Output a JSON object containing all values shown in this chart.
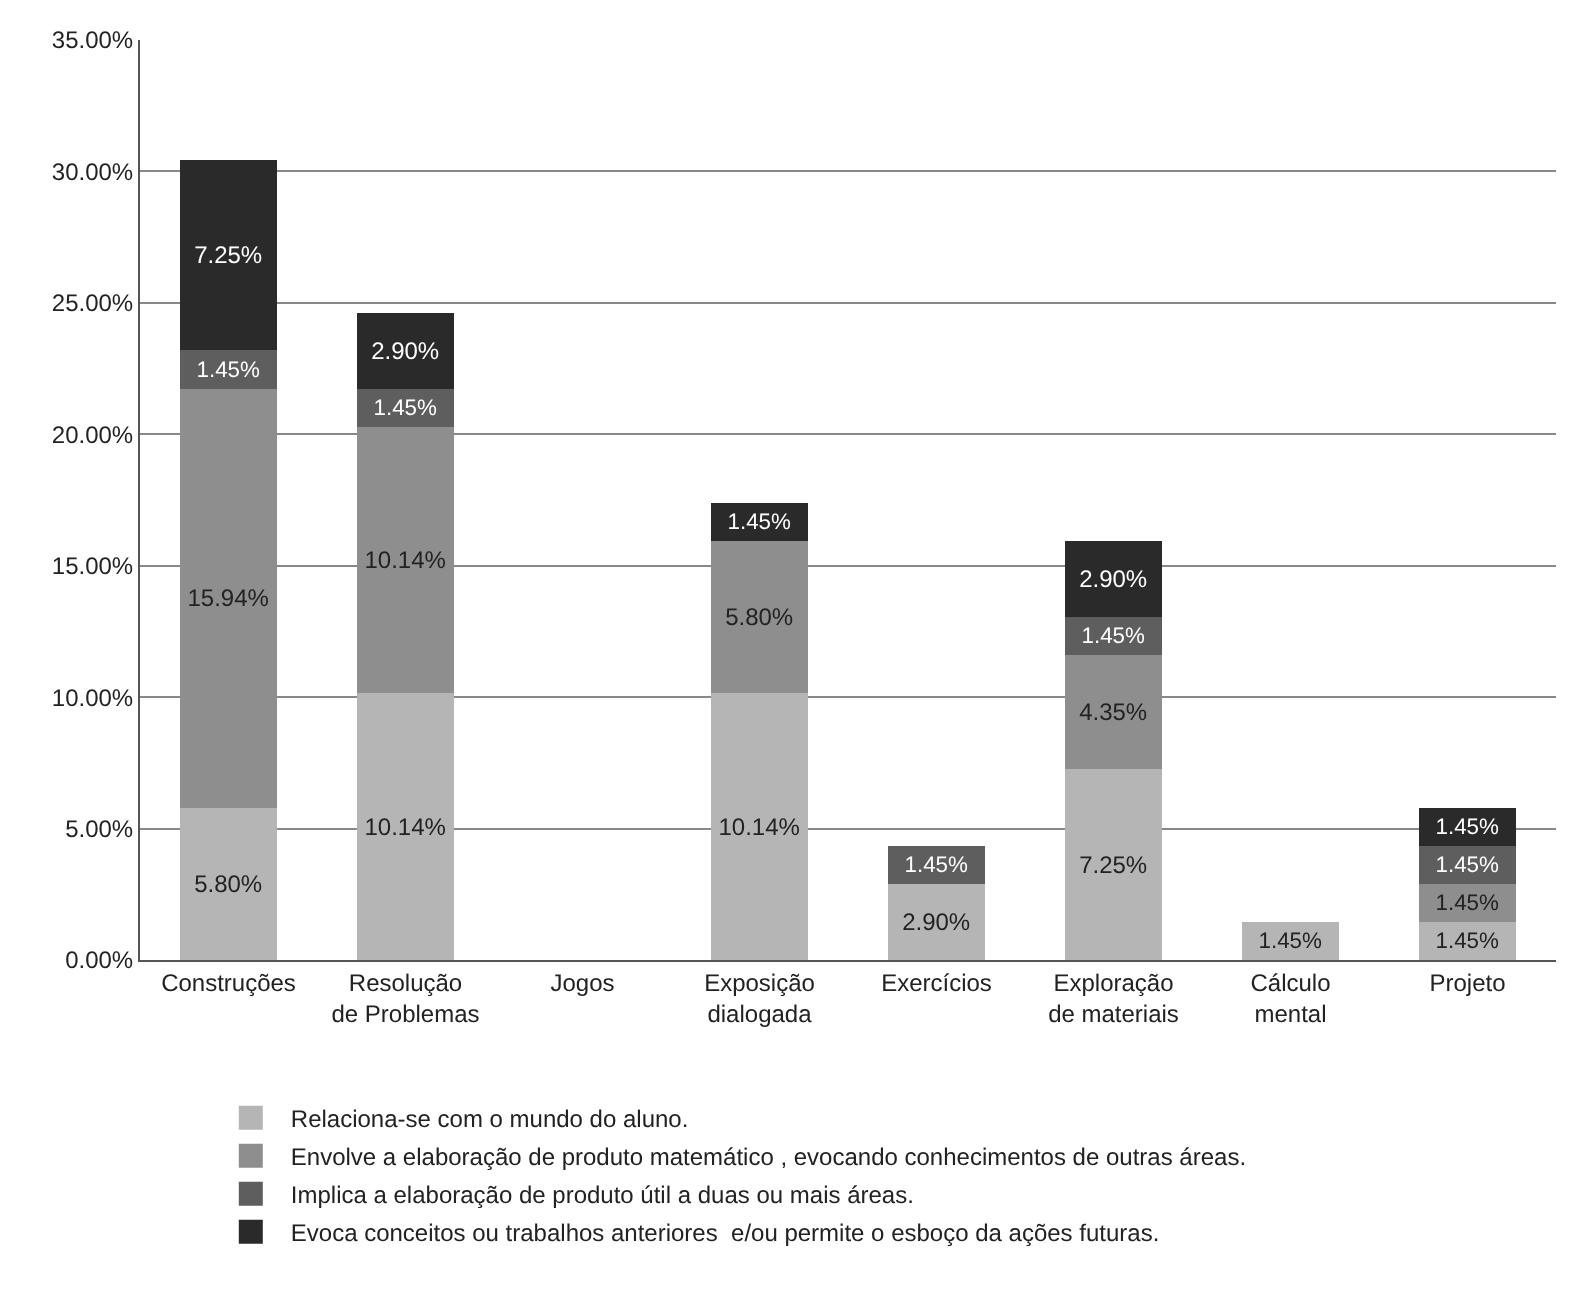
{
  "chart_data": {
    "type": "bar",
    "stacked": true,
    "categories": [
      "Construções",
      "Resolução de Problemas",
      "Jogos",
      "Exposição dialogada",
      "Exercícios",
      "Exploração de materiais",
      "Cálculo mental",
      "Projeto"
    ],
    "series": [
      {
        "name": "Relaciona-se com o mundo do aluno.",
        "color": "#b5b5b5",
        "values": [
          5.8,
          10.14,
          null,
          10.14,
          2.9,
          7.25,
          1.45,
          1.45
        ],
        "value_labels": [
          "5.80%",
          "10.14%",
          null,
          "10.14%",
          "2.90%",
          "7.25%",
          "1.45%",
          "1.45%"
        ]
      },
      {
        "name": "Envolve a elaboração de produto matemático , evocando conhecimentos de outras áreas.",
        "color": "#8e8e8e",
        "values": [
          15.94,
          10.14,
          null,
          5.8,
          null,
          4.35,
          null,
          1.45
        ],
        "value_labels": [
          "15.94%",
          "10.14%",
          null,
          "5.80%",
          null,
          "4.35%",
          null,
          "1.45%"
        ]
      },
      {
        "name": "Implica a elaboração de produto útil a duas ou mais áreas.",
        "color": "#5e5e5e",
        "values": [
          1.45,
          1.45,
          null,
          null,
          1.45,
          1.45,
          null,
          1.45
        ],
        "value_labels": [
          "1.45%",
          "1.45%",
          null,
          null,
          "1.45%",
          "1.45%",
          null,
          "1.45%"
        ]
      },
      {
        "name": "Evoca conceitos ou trabalhos anteriores  e/ou permite o esboço da ações futuras.",
        "color": "#2a2a2a",
        "values": [
          7.25,
          2.9,
          null,
          1.45,
          null,
          2.9,
          null,
          1.45
        ],
        "value_labels": [
          "7.25%",
          "2.90%",
          null,
          "1.45%",
          null,
          "2.90%",
          null,
          "1.45%"
        ]
      }
    ],
    "ylim": [
      0,
      35
    ],
    "yticks": [
      {
        "value": 0,
        "label": "0.00%"
      },
      {
        "value": 5,
        "label": "5.00%"
      },
      {
        "value": 10,
        "label": "10.00%"
      },
      {
        "value": 15,
        "label": "15.00%"
      },
      {
        "value": 20,
        "label": "20.00%"
      },
      {
        "value": 25,
        "label": "25.00%"
      },
      {
        "value": 30,
        "label": "30.00%"
      },
      {
        "value": 35,
        "label": "35.00%"
      }
    ],
    "grid": "y",
    "legend": "bottom"
  }
}
